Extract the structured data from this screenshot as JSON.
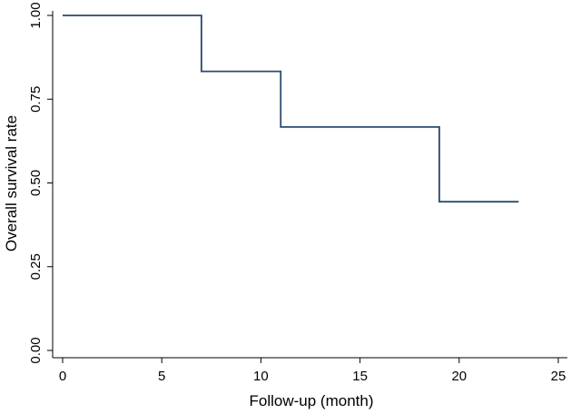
{
  "chart_data": {
    "type": "line",
    "title": "",
    "xlabel": "Follow-up (month)",
    "ylabel": "Overall survival rate",
    "xlim": [
      0,
      25
    ],
    "ylim": [
      0,
      1
    ],
    "x_ticks": [
      0,
      5,
      10,
      15,
      20,
      25
    ],
    "x_tick_labels": [
      "0",
      "5",
      "10",
      "15",
      "20",
      "25"
    ],
    "y_ticks": [
      0,
      0.25,
      0.5,
      0.75,
      1.0
    ],
    "y_tick_labels": [
      "0.00",
      "0.25",
      "0.50",
      "0.75",
      "1.00"
    ],
    "grid": false,
    "legend": "none",
    "series": [
      {
        "style": "step-post",
        "color": "#2a4a6e",
        "x": [
          0,
          7,
          11,
          19,
          23
        ],
        "y": [
          1.0,
          0.833,
          0.667,
          0.444,
          0.444
        ]
      }
    ]
  }
}
